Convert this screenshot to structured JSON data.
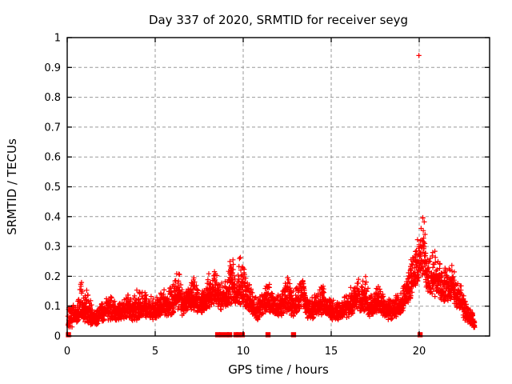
{
  "title": "Day 337 of 2020, SRMTID for receiver seyg",
  "colors": {
    "background": "#ffffff",
    "frame": "#000000",
    "grid": "#9a9a9a",
    "points": "#ff0000"
  },
  "chart_data": {
    "type": "scatter",
    "title": "Day 337 of 2020, SRMTID for receiver seyg",
    "xlabel": "GPS time / hours",
    "ylabel": "SRMTID / TECUs",
    "xlim": [
      0,
      24
    ],
    "ylim": [
      0,
      1
    ],
    "x_ticks": [
      0,
      5,
      10,
      15,
      20
    ],
    "x_tick_labels": [
      "0",
      "5",
      "10",
      "15",
      "20"
    ],
    "y_ticks": [
      0,
      0.1,
      0.2,
      0.3,
      0.4,
      0.5,
      0.6,
      0.7,
      0.8,
      0.9,
      1
    ],
    "y_tick_labels": [
      "0",
      "0.1",
      "0.2",
      "0.3",
      "0.4",
      "0.5",
      "0.6",
      "0.7",
      "0.8",
      "0.9",
      "1"
    ],
    "grid": true,
    "grid_style": "dashed",
    "legend": false,
    "marker": "plus",
    "marker_color": "#ff0000",
    "series": [
      {
        "name": "SRMTID",
        "start_hour": 0.05,
        "end_hour": 23.15,
        "sample_interval_hours": 0.008333,
        "max_value": 0.43,
        "typical_band": [
          0.05,
          0.15
        ],
        "envelope_keyframes": [
          [
            0.05,
            0.01,
            0.1
          ],
          [
            0.3,
            0.03,
            0.11
          ],
          [
            0.6,
            0.04,
            0.13
          ],
          [
            0.75,
            0.06,
            0.2
          ],
          [
            0.9,
            0.05,
            0.16
          ],
          [
            1.1,
            0.04,
            0.17
          ],
          [
            1.3,
            0.03,
            0.12
          ],
          [
            1.6,
            0.03,
            0.1
          ],
          [
            1.9,
            0.04,
            0.12
          ],
          [
            2.2,
            0.05,
            0.14
          ],
          [
            2.5,
            0.05,
            0.15
          ],
          [
            2.8,
            0.04,
            0.12
          ],
          [
            3.1,
            0.05,
            0.13
          ],
          [
            3.4,
            0.06,
            0.15
          ],
          [
            3.7,
            0.05,
            0.14
          ],
          [
            4.0,
            0.05,
            0.16
          ],
          [
            4.3,
            0.06,
            0.17
          ],
          [
            4.6,
            0.06,
            0.14
          ],
          [
            4.9,
            0.05,
            0.13
          ],
          [
            5.2,
            0.06,
            0.15
          ],
          [
            5.5,
            0.07,
            0.16
          ],
          [
            5.8,
            0.06,
            0.16
          ],
          [
            6.1,
            0.07,
            0.2
          ],
          [
            6.35,
            0.08,
            0.23
          ],
          [
            6.6,
            0.06,
            0.15
          ],
          [
            6.9,
            0.08,
            0.18
          ],
          [
            7.2,
            0.08,
            0.2
          ],
          [
            7.5,
            0.07,
            0.16
          ],
          [
            7.8,
            0.08,
            0.18
          ],
          [
            8.1,
            0.09,
            0.22
          ],
          [
            8.4,
            0.1,
            0.24
          ],
          [
            8.7,
            0.08,
            0.18
          ],
          [
            9.0,
            0.09,
            0.2
          ],
          [
            9.2,
            0.1,
            0.25
          ],
          [
            9.4,
            0.11,
            0.28
          ],
          [
            9.6,
            0.09,
            0.2
          ],
          [
            9.8,
            0.1,
            0.27
          ],
          [
            10.0,
            0.1,
            0.26
          ],
          [
            10.2,
            0.08,
            0.2
          ],
          [
            10.5,
            0.07,
            0.16
          ],
          [
            10.8,
            0.05,
            0.13
          ],
          [
            11.1,
            0.07,
            0.17
          ],
          [
            11.4,
            0.08,
            0.2
          ],
          [
            11.7,
            0.07,
            0.16
          ],
          [
            12.0,
            0.06,
            0.14
          ],
          [
            12.3,
            0.07,
            0.17
          ],
          [
            12.55,
            0.08,
            0.21
          ],
          [
            12.8,
            0.06,
            0.15
          ],
          [
            13.1,
            0.08,
            0.18
          ],
          [
            13.35,
            0.09,
            0.22
          ],
          [
            13.6,
            0.06,
            0.15
          ],
          [
            13.9,
            0.05,
            0.13
          ],
          [
            14.2,
            0.06,
            0.15
          ],
          [
            14.5,
            0.07,
            0.18
          ],
          [
            14.8,
            0.06,
            0.14
          ],
          [
            15.1,
            0.05,
            0.13
          ],
          [
            15.4,
            0.05,
            0.12
          ],
          [
            15.7,
            0.06,
            0.14
          ],
          [
            16.0,
            0.06,
            0.15
          ],
          [
            16.25,
            0.07,
            0.18
          ],
          [
            16.45,
            0.09,
            0.24
          ],
          [
            16.7,
            0.07,
            0.16
          ],
          [
            16.9,
            0.08,
            0.22
          ],
          [
            17.2,
            0.06,
            0.14
          ],
          [
            17.5,
            0.07,
            0.16
          ],
          [
            17.75,
            0.08,
            0.18
          ],
          [
            18.0,
            0.06,
            0.14
          ],
          [
            18.3,
            0.05,
            0.13
          ],
          [
            18.6,
            0.06,
            0.14
          ],
          [
            18.9,
            0.07,
            0.15
          ],
          [
            19.2,
            0.09,
            0.18
          ],
          [
            19.5,
            0.12,
            0.26
          ],
          [
            19.75,
            0.15,
            0.3
          ],
          [
            19.95,
            0.18,
            0.35
          ],
          [
            20.1,
            0.2,
            0.4
          ],
          [
            20.25,
            0.18,
            0.43
          ],
          [
            20.4,
            0.15,
            0.32
          ],
          [
            20.6,
            0.13,
            0.28
          ],
          [
            20.85,
            0.13,
            0.29
          ],
          [
            21.1,
            0.12,
            0.28
          ],
          [
            21.35,
            0.1,
            0.22
          ],
          [
            21.6,
            0.11,
            0.24
          ],
          [
            21.85,
            0.12,
            0.25
          ],
          [
            22.1,
            0.09,
            0.19
          ],
          [
            22.35,
            0.08,
            0.18
          ],
          [
            22.6,
            0.05,
            0.13
          ],
          [
            22.85,
            0.04,
            0.1
          ],
          [
            23.05,
            0.03,
            0.08
          ],
          [
            23.15,
            0.02,
            0.06
          ]
        ],
        "zero_value_hours": [
          0.07,
          8.55,
          8.77,
          9.05,
          9.23,
          9.59,
          9.73,
          9.95,
          11.41,
          12.86,
          20.05
        ],
        "outliers": [
          [
            19.98,
            0.94
          ]
        ]
      }
    ]
  }
}
